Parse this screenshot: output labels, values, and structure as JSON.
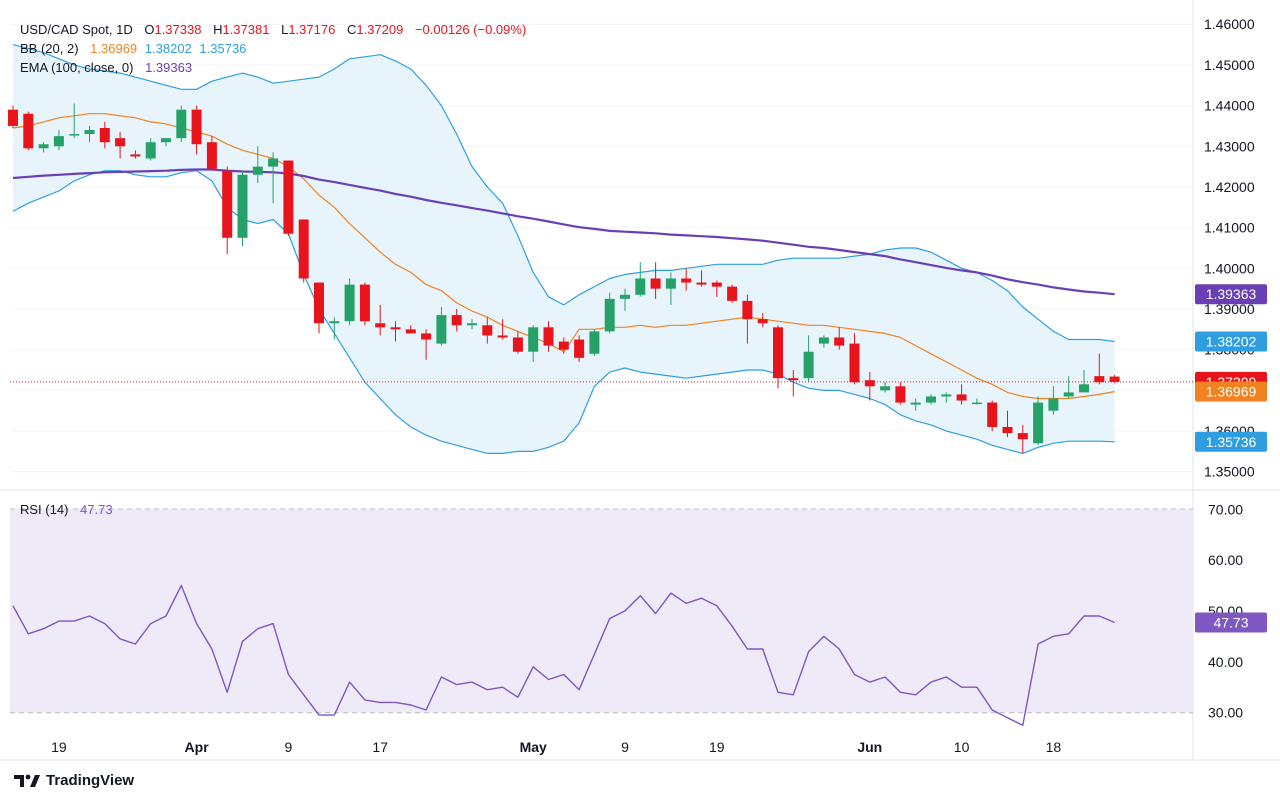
{
  "header": {
    "symbol": "USD/CAD Spot, 1D",
    "open_label": "O",
    "open": "1.37338",
    "high_label": "H",
    "high": "1.37381",
    "low_label": "L",
    "low": "1.37176",
    "close_label": "C",
    "close": "1.37209",
    "change": "−0.00126 (−0.09%)",
    "bb_label": "BB (20, 2)",
    "bb_mid": "1.36969",
    "bb_upper": "1.38202",
    "bb_lower": "1.35736",
    "ema_label": "EMA (100, close, 0)",
    "ema": "1.39363",
    "rsi_label": "RSI (14)",
    "rsi": "47.73"
  },
  "brand": "TradingView",
  "colors": {
    "up": "#26a269",
    "down": "#e8141c",
    "bb_band": "#2f9ee0",
    "bb_mid": "#f28220",
    "ema": "#6a3fb5",
    "rsi": "#7e57c2",
    "bb_fill": "#e8f4fb",
    "rsi_fill": "#efeaf7"
  },
  "chart_data": [
    {
      "type": "candlestick",
      "title": "USD/CAD Spot, 1D",
      "ylim": [
        1.346,
        1.4635
      ],
      "y_ticks": [
        "1.46000",
        "1.45000",
        "1.44000",
        "1.43000",
        "1.42000",
        "1.41000",
        "1.40000",
        "1.39000",
        "1.38000",
        "1.37000",
        "1.36000",
        "1.35000"
      ],
      "x_ticks": [
        {
          "i": 3,
          "label": "19"
        },
        {
          "i": 12,
          "label": "Apr"
        },
        {
          "i": 18,
          "label": "9"
        },
        {
          "i": 24,
          "label": "17"
        },
        {
          "i": 34,
          "label": "May"
        },
        {
          "i": 40,
          "label": "9"
        },
        {
          "i": 46,
          "label": "19"
        },
        {
          "i": 56,
          "label": "Jun"
        },
        {
          "i": 62,
          "label": "10"
        },
        {
          "i": 68,
          "label": "18"
        }
      ],
      "candles": [
        {
          "o": 1.439,
          "h": 1.44,
          "l": 1.4345,
          "c": 1.435
        },
        {
          "o": 1.438,
          "h": 1.4385,
          "l": 1.429,
          "c": 1.4295
        },
        {
          "o": 1.4295,
          "h": 1.431,
          "l": 1.4285,
          "c": 1.4305
        },
        {
          "o": 1.43,
          "h": 1.434,
          "l": 1.429,
          "c": 1.4325
        },
        {
          "o": 1.433,
          "h": 1.4405,
          "l": 1.432,
          "c": 1.433
        },
        {
          "o": 1.433,
          "h": 1.435,
          "l": 1.431,
          "c": 1.434
        },
        {
          "o": 1.4345,
          "h": 1.436,
          "l": 1.4295,
          "c": 1.431
        },
        {
          "o": 1.432,
          "h": 1.4335,
          "l": 1.427,
          "c": 1.43
        },
        {
          "o": 1.428,
          "h": 1.429,
          "l": 1.427,
          "c": 1.4275
        },
        {
          "o": 1.427,
          "h": 1.432,
          "l": 1.4265,
          "c": 1.431
        },
        {
          "o": 1.431,
          "h": 1.432,
          "l": 1.43,
          "c": 1.432
        },
        {
          "o": 1.432,
          "h": 1.44,
          "l": 1.431,
          "c": 1.439
        },
        {
          "o": 1.439,
          "h": 1.44,
          "l": 1.428,
          "c": 1.4305
        },
        {
          "o": 1.431,
          "h": 1.4325,
          "l": 1.424,
          "c": 1.4245
        },
        {
          "o": 1.424,
          "h": 1.425,
          "l": 1.4035,
          "c": 1.4075
        },
        {
          "o": 1.4075,
          "h": 1.424,
          "l": 1.4055,
          "c": 1.423
        },
        {
          "o": 1.423,
          "h": 1.43,
          "l": 1.421,
          "c": 1.425
        },
        {
          "o": 1.425,
          "h": 1.4285,
          "l": 1.416,
          "c": 1.427
        },
        {
          "o": 1.4265,
          "h": 1.4265,
          "l": 1.408,
          "c": 1.4085
        },
        {
          "o": 1.412,
          "h": 1.412,
          "l": 1.3965,
          "c": 1.3975
        },
        {
          "o": 1.3965,
          "h": 1.3965,
          "l": 1.384,
          "c": 1.3865
        },
        {
          "o": 1.3865,
          "h": 1.388,
          "l": 1.3825,
          "c": 1.387
        },
        {
          "o": 1.387,
          "h": 1.3975,
          "l": 1.386,
          "c": 1.396
        },
        {
          "o": 1.396,
          "h": 1.3965,
          "l": 1.386,
          "c": 1.387
        },
        {
          "o": 1.3865,
          "h": 1.391,
          "l": 1.3835,
          "c": 1.3855
        },
        {
          "o": 1.3855,
          "h": 1.387,
          "l": 1.382,
          "c": 1.385
        },
        {
          "o": 1.385,
          "h": 1.386,
          "l": 1.384,
          "c": 1.384
        },
        {
          "o": 1.384,
          "h": 1.385,
          "l": 1.3775,
          "c": 1.3825
        },
        {
          "o": 1.3815,
          "h": 1.3905,
          "l": 1.381,
          "c": 1.3885
        },
        {
          "o": 1.3885,
          "h": 1.39,
          "l": 1.3845,
          "c": 1.386
        },
        {
          "o": 1.386,
          "h": 1.3875,
          "l": 1.385,
          "c": 1.3865
        },
        {
          "o": 1.386,
          "h": 1.388,
          "l": 1.3815,
          "c": 1.3835
        },
        {
          "o": 1.3835,
          "h": 1.3875,
          "l": 1.3825,
          "c": 1.383
        },
        {
          "o": 1.383,
          "h": 1.3845,
          "l": 1.379,
          "c": 1.3795
        },
        {
          "o": 1.3795,
          "h": 1.386,
          "l": 1.377,
          "c": 1.3855
        },
        {
          "o": 1.3855,
          "h": 1.387,
          "l": 1.3795,
          "c": 1.381
        },
        {
          "o": 1.382,
          "h": 1.383,
          "l": 1.379,
          "c": 1.38
        },
        {
          "o": 1.3825,
          "h": 1.3835,
          "l": 1.377,
          "c": 1.378
        },
        {
          "o": 1.379,
          "h": 1.385,
          "l": 1.3785,
          "c": 1.3845
        },
        {
          "o": 1.3845,
          "h": 1.394,
          "l": 1.384,
          "c": 1.3925
        },
        {
          "o": 1.3925,
          "h": 1.395,
          "l": 1.3895,
          "c": 1.3935
        },
        {
          "o": 1.3935,
          "h": 1.4015,
          "l": 1.393,
          "c": 1.3975
        },
        {
          "o": 1.3975,
          "h": 1.4015,
          "l": 1.3925,
          "c": 1.395
        },
        {
          "o": 1.395,
          "h": 1.399,
          "l": 1.391,
          "c": 1.3975
        },
        {
          "o": 1.3975,
          "h": 1.4,
          "l": 1.3945,
          "c": 1.3965
        },
        {
          "o": 1.3965,
          "h": 1.3995,
          "l": 1.3955,
          "c": 1.396
        },
        {
          "o": 1.3965,
          "h": 1.397,
          "l": 1.393,
          "c": 1.3955
        },
        {
          "o": 1.3955,
          "h": 1.396,
          "l": 1.3915,
          "c": 1.392
        },
        {
          "o": 1.392,
          "h": 1.3935,
          "l": 1.3815,
          "c": 1.3875
        },
        {
          "o": 1.3875,
          "h": 1.389,
          "l": 1.3855,
          "c": 1.3865
        },
        {
          "o": 1.3855,
          "h": 1.386,
          "l": 1.3705,
          "c": 1.373
        },
        {
          "o": 1.373,
          "h": 1.375,
          "l": 1.3685,
          "c": 1.3725
        },
        {
          "o": 1.373,
          "h": 1.3835,
          "l": 1.372,
          "c": 1.3795
        },
        {
          "o": 1.3815,
          "h": 1.3835,
          "l": 1.3805,
          "c": 1.383
        },
        {
          "o": 1.383,
          "h": 1.3855,
          "l": 1.38,
          "c": 1.381
        },
        {
          "o": 1.3815,
          "h": 1.384,
          "l": 1.3715,
          "c": 1.372
        },
        {
          "o": 1.3725,
          "h": 1.3745,
          "l": 1.3675,
          "c": 1.371
        },
        {
          "o": 1.37,
          "h": 1.372,
          "l": 1.3695,
          "c": 1.371
        },
        {
          "o": 1.371,
          "h": 1.372,
          "l": 1.3665,
          "c": 1.367
        },
        {
          "o": 1.3665,
          "h": 1.368,
          "l": 1.365,
          "c": 1.367
        },
        {
          "o": 1.367,
          "h": 1.369,
          "l": 1.3665,
          "c": 1.3685
        },
        {
          "o": 1.3685,
          "h": 1.3695,
          "l": 1.367,
          "c": 1.369
        },
        {
          "o": 1.369,
          "h": 1.3715,
          "l": 1.3665,
          "c": 1.3675
        },
        {
          "o": 1.367,
          "h": 1.368,
          "l": 1.3665,
          "c": 1.367
        },
        {
          "o": 1.367,
          "h": 1.3675,
          "l": 1.36,
          "c": 1.361
        },
        {
          "o": 1.361,
          "h": 1.365,
          "l": 1.3585,
          "c": 1.3595
        },
        {
          "o": 1.3595,
          "h": 1.3615,
          "l": 1.3545,
          "c": 1.358
        },
        {
          "o": 1.357,
          "h": 1.3685,
          "l": 1.3565,
          "c": 1.367
        },
        {
          "o": 1.365,
          "h": 1.371,
          "l": 1.364,
          "c": 1.368
        },
        {
          "o": 1.3685,
          "h": 1.3735,
          "l": 1.368,
          "c": 1.3695
        },
        {
          "o": 1.3695,
          "h": 1.375,
          "l": 1.3695,
          "c": 1.3715
        },
        {
          "o": 1.3735,
          "h": 1.379,
          "l": 1.3715,
          "c": 1.372
        },
        {
          "o": 1.37338,
          "h": 1.37381,
          "l": 1.37176,
          "c": 1.37209
        }
      ],
      "bb_upper": [
        1.455,
        1.454,
        1.453,
        1.4515,
        1.45,
        1.449,
        1.4485,
        1.448,
        1.447,
        1.446,
        1.445,
        1.444,
        1.444,
        1.446,
        1.447,
        1.448,
        1.447,
        1.4455,
        1.446,
        1.4465,
        1.447,
        1.449,
        1.4515,
        1.452,
        1.4525,
        1.451,
        1.449,
        1.445,
        1.44,
        1.433,
        1.425,
        1.42,
        1.416,
        1.408,
        1.399,
        1.393,
        1.391,
        1.3935,
        1.3955,
        1.3975,
        1.3985,
        1.399,
        1.3995,
        1.3995,
        1.4,
        1.4005,
        1.401,
        1.401,
        1.401,
        1.401,
        1.402,
        1.4025,
        1.4025,
        1.4025,
        1.4025,
        1.403,
        1.4035,
        1.4045,
        1.405,
        1.405,
        1.404,
        1.402,
        1.4,
        1.399,
        1.397,
        1.3945,
        1.3905,
        1.3875,
        1.3845,
        1.3825,
        1.3825,
        1.3825,
        1.38202
      ],
      "bb_mid": [
        1.4345,
        1.435,
        1.436,
        1.437,
        1.4375,
        1.438,
        1.438,
        1.4375,
        1.437,
        1.436,
        1.4355,
        1.4345,
        1.4335,
        1.4325,
        1.4305,
        1.429,
        1.428,
        1.427,
        1.425,
        1.422,
        1.418,
        1.415,
        1.411,
        1.4075,
        1.404,
        1.401,
        1.399,
        1.396,
        1.3945,
        1.3915,
        1.3895,
        1.388,
        1.386,
        1.3845,
        1.383,
        1.3815,
        1.3795,
        1.385,
        1.385,
        1.3855,
        1.3855,
        1.386,
        1.3855,
        1.386,
        1.386,
        1.3865,
        1.387,
        1.3875,
        1.388,
        1.3875,
        1.387,
        1.3865,
        1.386,
        1.386,
        1.3855,
        1.385,
        1.3845,
        1.384,
        1.383,
        1.381,
        1.379,
        1.377,
        1.375,
        1.373,
        1.3715,
        1.3695,
        1.3685,
        1.368,
        1.368,
        1.368,
        1.3685,
        1.369,
        1.36969
      ],
      "bb_lower": [
        1.414,
        1.416,
        1.4175,
        1.419,
        1.4215,
        1.423,
        1.424,
        1.424,
        1.423,
        1.4225,
        1.4225,
        1.4235,
        1.424,
        1.4215,
        1.415,
        1.412,
        1.411,
        1.412,
        1.4085,
        1.3985,
        1.39,
        1.384,
        1.378,
        1.372,
        1.368,
        1.364,
        1.361,
        1.359,
        1.3575,
        1.3565,
        1.3555,
        1.3545,
        1.3545,
        1.355,
        1.355,
        1.356,
        1.3575,
        1.362,
        1.371,
        1.3745,
        1.3755,
        1.3745,
        1.374,
        1.3735,
        1.373,
        1.3735,
        1.374,
        1.3745,
        1.375,
        1.375,
        1.374,
        1.372,
        1.3705,
        1.37,
        1.37,
        1.369,
        1.368,
        1.3665,
        1.364,
        1.3625,
        1.3615,
        1.36,
        1.359,
        1.358,
        1.3565,
        1.3555,
        1.3545,
        1.356,
        1.357,
        1.3575,
        1.3575,
        1.3575,
        1.35736
      ],
      "ema": [
        1.4222,
        1.4225,
        1.4228,
        1.423,
        1.4232,
        1.4234,
        1.4236,
        1.4237,
        1.4238,
        1.4239,
        1.424,
        1.4242,
        1.4243,
        1.4243,
        1.424,
        1.4238,
        1.4237,
        1.4236,
        1.4233,
        1.4227,
        1.4218,
        1.4212,
        1.4205,
        1.4198,
        1.4191,
        1.4183,
        1.4176,
        1.4168,
        1.4161,
        1.4155,
        1.4148,
        1.4142,
        1.4135,
        1.4128,
        1.4122,
        1.4115,
        1.4108,
        1.4101,
        1.4097,
        1.4092,
        1.409,
        1.4088,
        1.4086,
        1.4083,
        1.4081,
        1.4079,
        1.4077,
        1.4074,
        1.4071,
        1.4068,
        1.4063,
        1.4058,
        1.4053,
        1.405,
        1.4045,
        1.404,
        1.4035,
        1.403,
        1.4022,
        1.4015,
        1.4008,
        1.4001,
        1.3995,
        1.399,
        1.3982,
        1.3973,
        1.3966,
        1.396,
        1.3953,
        1.3948,
        1.3943,
        1.394,
        1.39363
      ]
    },
    {
      "type": "line",
      "title": "RSI (14)",
      "ylim": [
        25,
        73
      ],
      "y_ticks": [
        "70.00",
        "60.00",
        "50.00",
        "40.00",
        "30.00"
      ],
      "bands": [
        30,
        70
      ],
      "midline": 50,
      "series": [
        {
          "name": "RSI (14)",
          "values": [
            51,
            45.5,
            46.5,
            48,
            48,
            49,
            47.5,
            44.5,
            43.5,
            47.5,
            49,
            55,
            47.5,
            42.5,
            34,
            44,
            46.5,
            47.5,
            37.5,
            33.5,
            29.5,
            29.5,
            36,
            32.5,
            32,
            32,
            31.5,
            30.5,
            37,
            35.5,
            36,
            34.5,
            35,
            33,
            39,
            36.5,
            37.5,
            34.5,
            41.5,
            48.5,
            50,
            53,
            49.5,
            53.5,
            51.5,
            52.5,
            51,
            47,
            42.5,
            42.5,
            34,
            33.5,
            42,
            45,
            42.5,
            37.5,
            36,
            37,
            34,
            33.5,
            36,
            37,
            35,
            35,
            30.5,
            29,
            27.5,
            43.5,
            45,
            45.5,
            49,
            49,
            47.73
          ]
        }
      ]
    }
  ]
}
